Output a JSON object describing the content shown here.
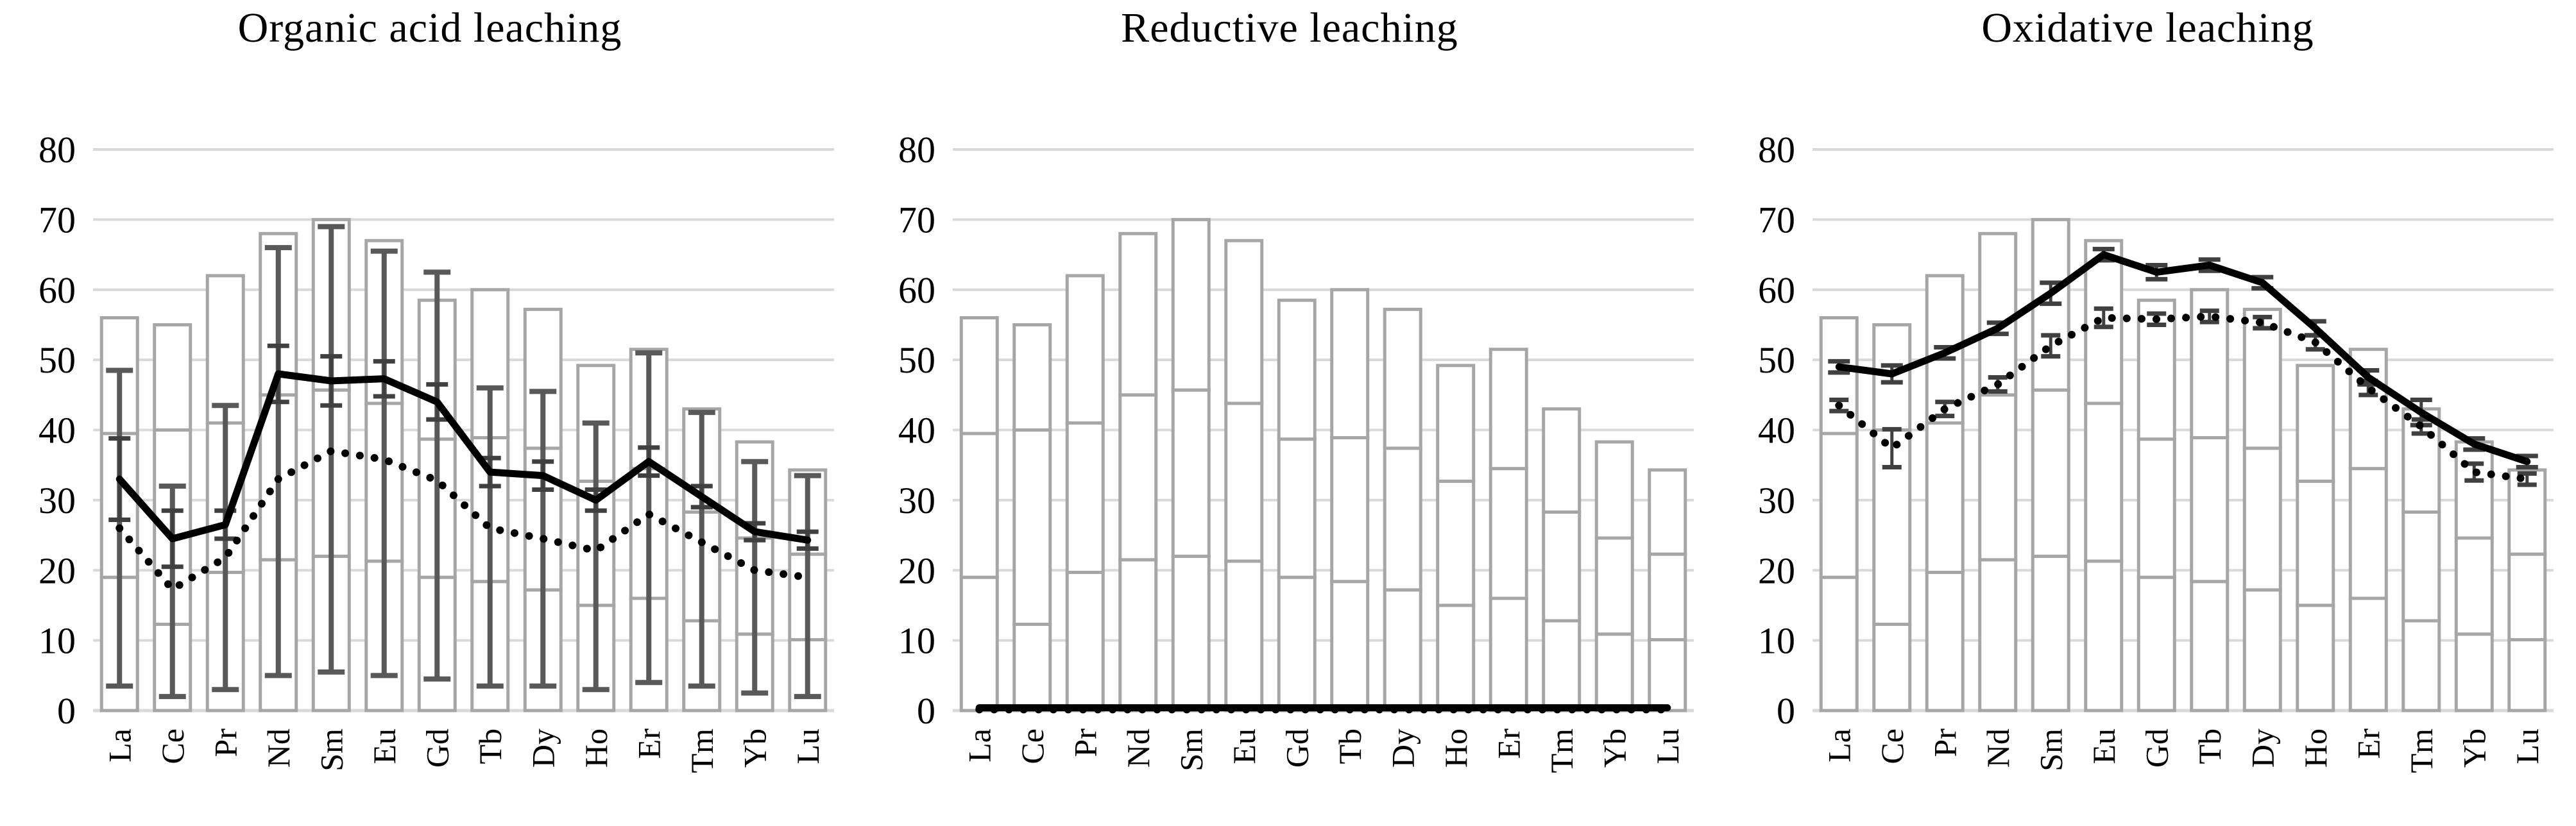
{
  "figure": {
    "background": "#ffffff",
    "description": "Three combo charts of rare-earth-element leaching efficiency"
  },
  "style": {
    "grid_color": "#d9d9d9",
    "bar_outline_color": "#a6a6a6",
    "bar_fill_color": "#ffffff",
    "range_error_color": "#595959",
    "error_cap_color": "#404040",
    "line_color": "#000000",
    "text_color": "#000000"
  },
  "chart_data": [
    {
      "type": "combo-bar-line",
      "title": "Organic acid leaching",
      "categories": [
        "La",
        "Ce",
        "Pr",
        "Nd",
        "Sm",
        "Eu",
        "Gd",
        "Tb",
        "Dy",
        "Ho",
        "Er",
        "Tm",
        "Yb",
        "Lu"
      ],
      "ylim": [
        0,
        80
      ],
      "yticks": [
        0,
        10,
        20,
        30,
        40,
        50,
        60,
        70,
        80
      ],
      "grid": true,
      "legend": null,
      "x_label_rotation": -90,
      "bars": {
        "top": [
          56,
          55,
          62,
          68,
          70,
          67,
          58.5,
          60,
          57.2,
          49.2,
          51.5,
          43,
          38.3,
          34.3
        ],
        "upper": [
          39.5,
          40,
          41,
          45,
          45.7,
          43.8,
          38.7,
          38.9,
          37.4,
          32.7,
          34.5,
          28.3,
          24.6,
          22.3
        ],
        "lower": [
          19,
          12.3,
          19.7,
          21.5,
          22,
          21.3,
          19,
          18.4,
          17.2,
          15,
          16,
          12.8,
          10.9,
          10.1
        ]
      },
      "range_error": {
        "lo": [
          3.5,
          2,
          3,
          5,
          5.5,
          5,
          4.5,
          3.5,
          3.5,
          3,
          4,
          3.5,
          2.5,
          2
        ],
        "hi": [
          48.5,
          32,
          43.5,
          66,
          69,
          65.5,
          62.5,
          46,
          45.5,
          41,
          51,
          42.5,
          35.5,
          33.5
        ]
      },
      "solid": {
        "values": [
          33,
          24.5,
          26.5,
          48,
          47,
          47.3,
          44,
          34,
          33.5,
          30,
          35.5,
          30.5,
          25.5,
          24.3
        ],
        "err": [
          5.8,
          4,
          2,
          4,
          3.5,
          2.5,
          2.5,
          2,
          2,
          1.5,
          2,
          1.5,
          1.2,
          1.2
        ]
      },
      "dotted": {
        "values": [
          26,
          17.3,
          21.8,
          33,
          37,
          35.8,
          32.8,
          26,
          24.5,
          22.8,
          28,
          24,
          20,
          19
        ],
        "err": null
      }
    },
    {
      "type": "combo-bar-line",
      "title": "Reductive leaching",
      "categories": [
        "La",
        "Ce",
        "Pr",
        "Nd",
        "Sm",
        "Eu",
        "Gd",
        "Tb",
        "Dy",
        "Ho",
        "Er",
        "Tm",
        "Yb",
        "Lu"
      ],
      "ylim": [
        0,
        80
      ],
      "yticks": [
        0,
        10,
        20,
        30,
        40,
        50,
        60,
        70,
        80
      ],
      "grid": true,
      "legend": null,
      "x_label_rotation": -90,
      "bars": {
        "top": [
          56,
          55,
          62,
          68,
          70,
          67,
          58.5,
          60,
          57.2,
          49.2,
          51.5,
          43,
          38.3,
          34.3
        ],
        "upper": [
          39.5,
          40,
          41,
          45,
          45.7,
          43.8,
          38.7,
          38.9,
          37.4,
          32.7,
          34.5,
          28.3,
          24.6,
          22.3
        ],
        "lower": [
          19,
          12.3,
          19.7,
          21.5,
          22,
          21.3,
          19,
          18.4,
          17.2,
          15,
          16,
          12.8,
          10.9,
          10.1
        ]
      },
      "range_error": null,
      "solid": {
        "values": [
          0.4,
          0.4,
          0.4,
          0.4,
          0.4,
          0.4,
          0.4,
          0.4,
          0.4,
          0.4,
          0.4,
          0.4,
          0.4,
          0.4
        ],
        "err": null
      },
      "dotted": {
        "values": [
          0.15,
          0.15,
          0.15,
          0.15,
          0.15,
          0.15,
          0.15,
          0.15,
          0.15,
          0.15,
          0.15,
          0.15,
          0.15,
          0.15
        ],
        "err": null
      }
    },
    {
      "type": "combo-bar-line",
      "title": "Oxidative leaching",
      "categories": [
        "La",
        "Ce",
        "Pr",
        "Nd",
        "Sm",
        "Eu",
        "Gd",
        "Tb",
        "Dy",
        "Ho",
        "Er",
        "Tm",
        "Yb",
        "Lu"
      ],
      "ylim": [
        0,
        80
      ],
      "yticks": [
        0,
        10,
        20,
        30,
        40,
        50,
        60,
        70,
        80
      ],
      "grid": true,
      "legend": null,
      "x_label_rotation": -90,
      "bars": {
        "top": [
          56,
          55,
          62,
          68,
          70,
          67,
          58.5,
          60,
          57.2,
          49.2,
          51.5,
          43,
          38.3,
          34.3
        ],
        "upper": [
          39.5,
          40,
          41,
          45,
          45.7,
          43.8,
          38.7,
          38.9,
          37.4,
          32.7,
          34.5,
          28.3,
          24.6,
          22.3
        ],
        "lower": [
          19,
          12.3,
          19.7,
          21.5,
          22,
          21.3,
          19,
          18.4,
          17.2,
          15,
          16,
          12.8,
          10.9,
          10.1
        ]
      },
      "range_error": null,
      "solid": {
        "values": [
          49,
          48,
          51,
          54.5,
          59.5,
          65,
          62.5,
          63.5,
          61,
          54.5,
          47.5,
          42.5,
          38,
          35.5
        ],
        "err": [
          0.8,
          1.2,
          0.8,
          0.8,
          1.5,
          0.8,
          1,
          0.8,
          0.8,
          1,
          1,
          1.8,
          0.8,
          0.8
        ]
      },
      "dotted": {
        "values": [
          43.5,
          37.4,
          43,
          46.5,
          52,
          56,
          55.8,
          56.2,
          55.3,
          52.5,
          46,
          40.5,
          34,
          33
        ],
        "err": [
          0.8,
          2.7,
          1,
          1,
          1.5,
          1.3,
          0.8,
          0.8,
          0.8,
          1,
          1,
          1,
          1.2,
          0.8
        ]
      }
    }
  ]
}
